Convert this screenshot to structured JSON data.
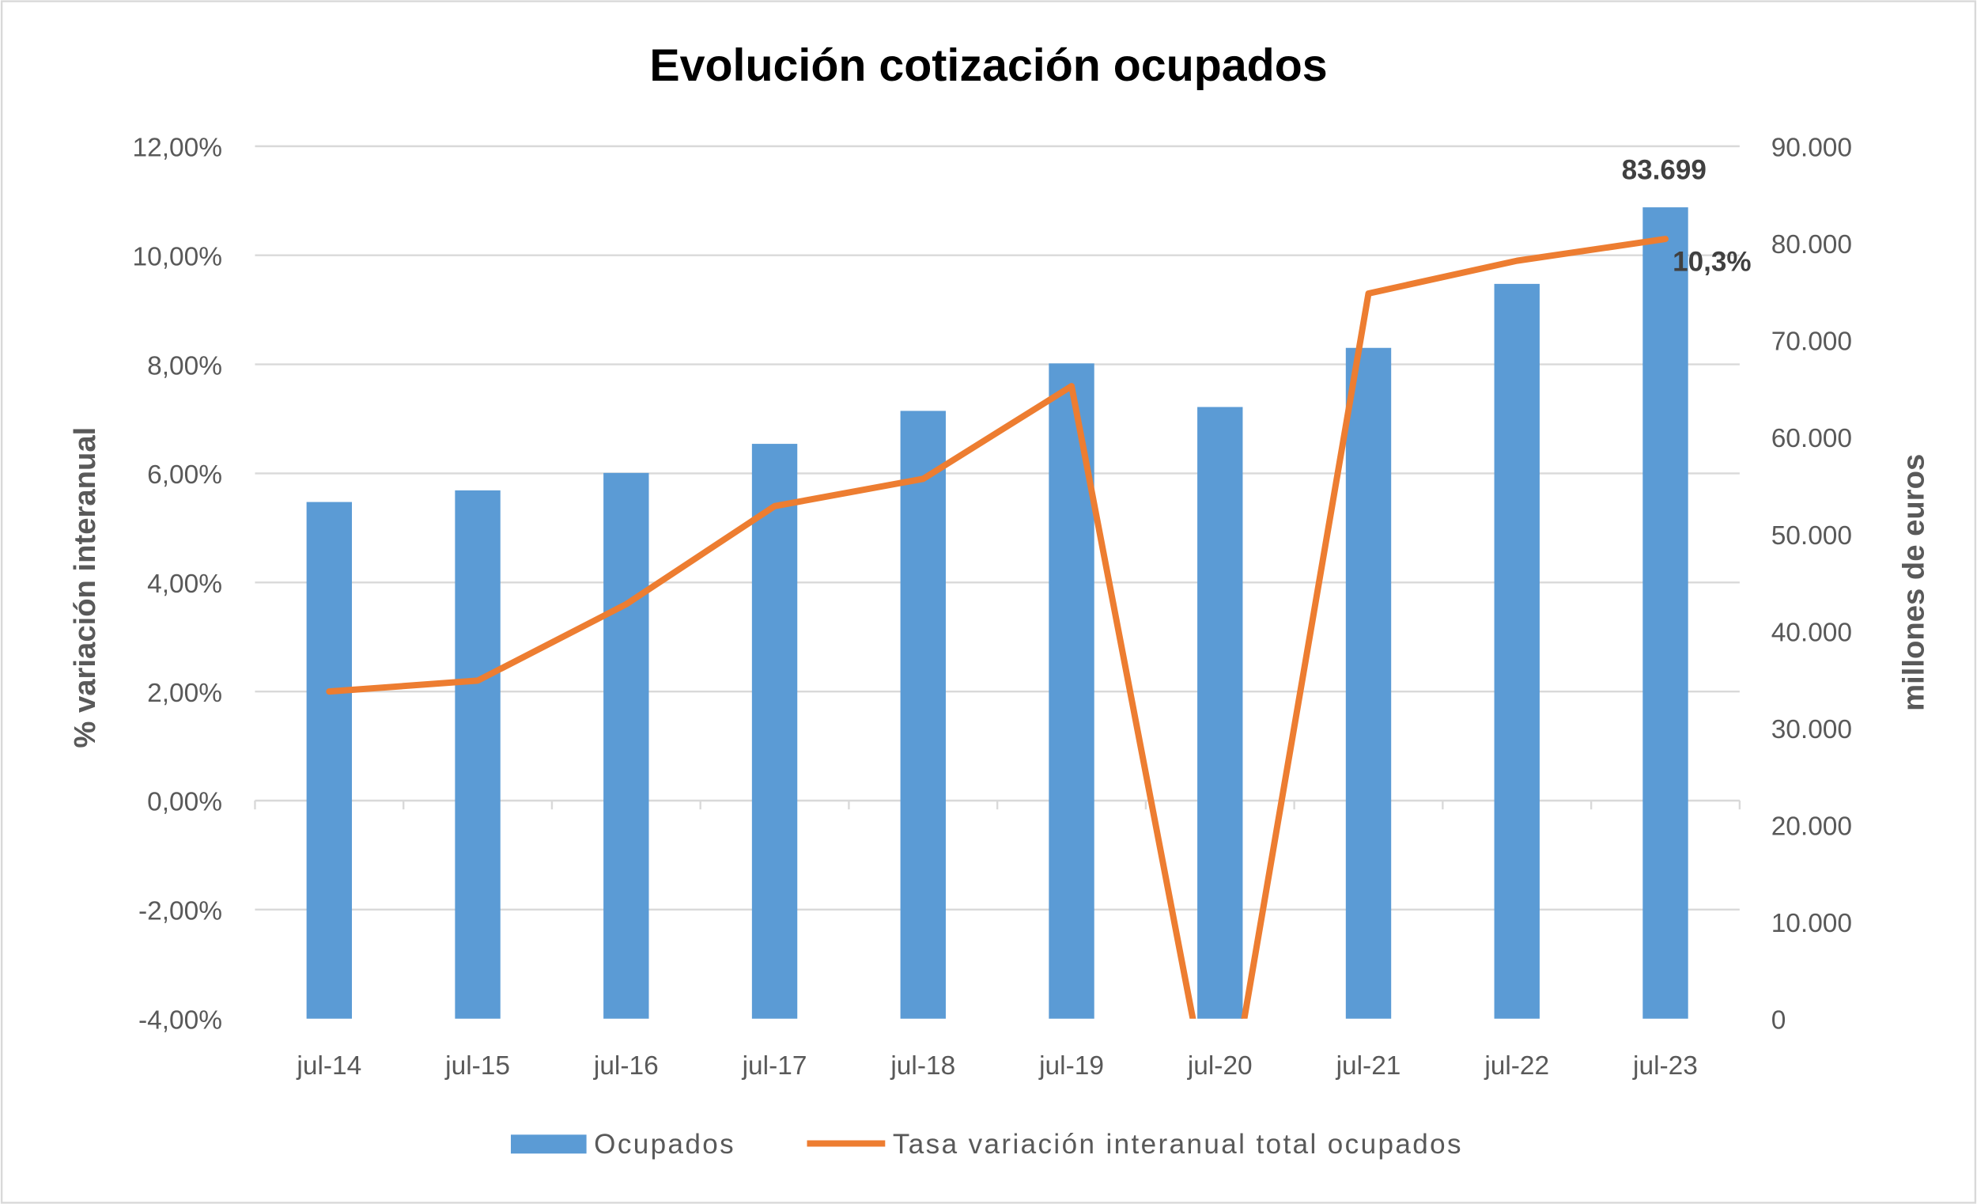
{
  "chart_data": {
    "type": "bar+line",
    "title": "Evolución cotización ocupados",
    "categories": [
      "jul-14",
      "jul-15",
      "jul-16",
      "jul-17",
      "jul-18",
      "jul-19",
      "jul-20",
      "jul-21",
      "jul-22",
      "jul-23"
    ],
    "series": [
      {
        "name": "Ocupados",
        "type": "bar",
        "axis": "right",
        "color": "#5B9BD5",
        "values": [
          53300,
          54500,
          56300,
          59300,
          62700,
          67600,
          63100,
          69200,
          75800,
          83699
        ]
      },
      {
        "name": "Tasa variación interanual total ocupados",
        "type": "line",
        "axis": "left",
        "color": "#ED7D31",
        "values": [
          2.0,
          2.2,
          3.6,
          5.4,
          5.9,
          7.6,
          -6.6,
          9.3,
          9.9,
          10.3
        ]
      }
    ],
    "ylabel_left": "% variación interanual",
    "ylabel_right": "millones de euros",
    "ylim_left": [
      -4,
      12
    ],
    "ylim_right": [
      0,
      90000
    ],
    "yticks_left": [
      "12,00%",
      "10,00%",
      "8,00%",
      "6,00%",
      "4,00%",
      "2,00%",
      "0,00%",
      "-2,00%",
      "-4,00%"
    ],
    "yticks_right": [
      "90.000",
      "80.000",
      "70.000",
      "60.000",
      "50.000",
      "40.000",
      "30.000",
      "20.000",
      "10.000",
      "0"
    ],
    "data_labels": {
      "bar_last": "83.699",
      "line_last": "10,3%"
    },
    "grid": true,
    "legend_position": "bottom"
  }
}
